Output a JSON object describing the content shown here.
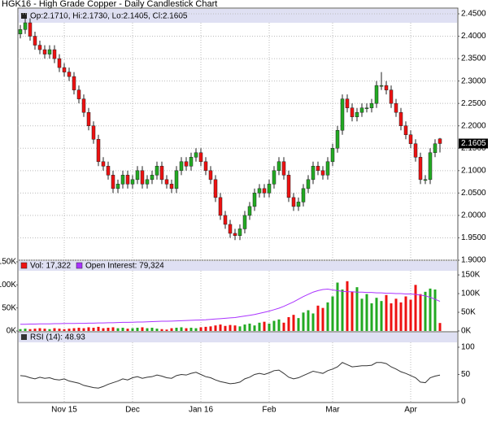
{
  "chart_data": [
    {
      "type": "candlestick",
      "title": "HGK16 - High Grade Copper - Daily Candlestick Chart",
      "legend_text": "Op:2.1710, Hi:2.1730, Lo:2.1405, Cl:2.1605",
      "up_color": "#22aa22",
      "down_color": "#ee1111",
      "grid": true,
      "categories": [
        null,
        null,
        null,
        null,
        null,
        null,
        null,
        null,
        null,
        "Nov 15",
        null,
        null,
        null,
        null,
        null,
        null,
        null,
        null,
        null,
        null,
        null,
        null,
        null,
        "Dec",
        null,
        null,
        null,
        null,
        null,
        null,
        null,
        null,
        null,
        null,
        null,
        null,
        null,
        "Jan 16",
        null,
        null,
        null,
        null,
        null,
        null,
        null,
        null,
        null,
        null,
        null,
        null,
        null,
        "Feb",
        null,
        null,
        null,
        null,
        null,
        null,
        null,
        null,
        null,
        null,
        null,
        null,
        "Mar",
        null,
        null,
        null,
        null,
        null,
        null,
        null,
        null,
        null,
        null,
        null,
        null,
        null,
        null,
        null,
        "Apr",
        null,
        null,
        null,
        null,
        null,
        null
      ],
      "open": [
        2.405,
        2.415,
        2.43,
        2.4,
        2.38,
        2.37,
        2.36,
        2.37,
        2.35,
        2.33,
        2.32,
        2.31,
        2.28,
        2.26,
        2.23,
        2.2,
        2.17,
        2.12,
        2.11,
        2.09,
        2.06,
        2.07,
        2.09,
        2.07,
        2.08,
        2.1,
        2.07,
        2.08,
        2.09,
        2.11,
        2.08,
        2.07,
        2.06,
        2.1,
        2.12,
        2.11,
        2.13,
        2.14,
        2.12,
        2.1,
        2.08,
        2.04,
        2.0,
        1.98,
        1.96,
        1.955,
        1.97,
        2.0,
        2.02,
        2.05,
        2.06,
        2.05,
        2.07,
        2.1,
        2.12,
        2.09,
        2.04,
        2.02,
        2.03,
        2.06,
        2.08,
        2.11,
        2.1,
        2.09,
        2.12,
        2.15,
        2.19,
        2.26,
        2.24,
        2.22,
        2.23,
        2.24,
        2.24,
        2.25,
        2.29,
        2.29,
        2.28,
        2.25,
        2.23,
        2.2,
        2.18,
        2.16,
        2.13,
        2.08,
        2.08,
        2.14,
        2.171
      ],
      "high": [
        2.425,
        2.44,
        2.44,
        2.41,
        2.39,
        2.38,
        2.38,
        2.38,
        2.36,
        2.34,
        2.33,
        2.32,
        2.29,
        2.27,
        2.24,
        2.21,
        2.18,
        2.13,
        2.12,
        2.1,
        2.08,
        2.1,
        2.1,
        2.09,
        2.11,
        2.11,
        2.09,
        2.1,
        2.12,
        2.12,
        2.09,
        2.08,
        2.11,
        2.13,
        2.13,
        2.14,
        2.15,
        2.15,
        2.13,
        2.11,
        2.09,
        2.05,
        2.01,
        1.99,
        1.97,
        1.98,
        2.01,
        2.03,
        2.06,
        2.07,
        2.07,
        2.08,
        2.11,
        2.13,
        2.13,
        2.1,
        2.05,
        2.04,
        2.07,
        2.09,
        2.12,
        2.12,
        2.11,
        2.13,
        2.16,
        2.2,
        2.27,
        2.27,
        2.25,
        2.24,
        2.25,
        2.25,
        2.26,
        2.3,
        2.32,
        2.3,
        2.29,
        2.26,
        2.24,
        2.21,
        2.19,
        2.17,
        2.14,
        2.09,
        2.15,
        2.17,
        2.173
      ],
      "low": [
        2.395,
        2.405,
        2.39,
        2.37,
        2.36,
        2.35,
        2.35,
        2.34,
        2.32,
        2.31,
        2.3,
        2.27,
        2.25,
        2.22,
        2.19,
        2.16,
        2.11,
        2.1,
        2.08,
        2.05,
        2.05,
        2.06,
        2.06,
        2.06,
        2.07,
        2.06,
        2.06,
        2.07,
        2.08,
        2.07,
        2.06,
        2.05,
        2.05,
        2.09,
        2.1,
        2.1,
        2.12,
        2.11,
        2.09,
        2.07,
        2.03,
        1.99,
        1.97,
        1.95,
        1.945,
        1.945,
        1.96,
        1.99,
        2.01,
        2.04,
        2.04,
        2.04,
        2.06,
        2.09,
        2.08,
        2.03,
        2.01,
        2.01,
        2.02,
        2.05,
        2.07,
        2.09,
        2.08,
        2.08,
        2.11,
        2.14,
        2.18,
        2.23,
        2.21,
        2.21,
        2.22,
        2.23,
        2.23,
        2.24,
        2.28,
        2.27,
        2.24,
        2.22,
        2.19,
        2.17,
        2.15,
        2.12,
        2.07,
        2.07,
        2.07,
        2.13,
        2.1405
      ],
      "close": [
        2.415,
        2.43,
        2.4,
        2.38,
        2.37,
        2.36,
        2.37,
        2.35,
        2.33,
        2.32,
        2.31,
        2.28,
        2.26,
        2.23,
        2.2,
        2.17,
        2.12,
        2.11,
        2.09,
        2.06,
        2.07,
        2.09,
        2.07,
        2.08,
        2.1,
        2.07,
        2.08,
        2.09,
        2.11,
        2.08,
        2.07,
        2.06,
        2.1,
        2.12,
        2.11,
        2.13,
        2.14,
        2.12,
        2.1,
        2.08,
        2.04,
        2.0,
        1.98,
        1.96,
        1.955,
        1.97,
        2.0,
        2.02,
        2.05,
        2.06,
        2.05,
        2.07,
        2.1,
        2.12,
        2.09,
        2.04,
        2.02,
        2.03,
        2.06,
        2.08,
        2.11,
        2.1,
        2.09,
        2.12,
        2.15,
        2.19,
        2.26,
        2.24,
        2.22,
        2.23,
        2.24,
        2.24,
        2.25,
        2.29,
        2.29,
        2.28,
        2.25,
        2.23,
        2.2,
        2.18,
        2.16,
        2.13,
        2.08,
        2.08,
        2.14,
        2.16,
        2.1605
      ],
      "ylim": [
        1.9,
        2.45
      ],
      "yticks": [
        {
          "value": 1.9,
          "label": "1.9000"
        },
        {
          "value": 1.95,
          "label": "1.9500"
        },
        {
          "value": 2.0,
          "label": "2.0000"
        },
        {
          "value": 2.05,
          "label": "2.0500"
        },
        {
          "value": 2.1,
          "label": "2.1000"
        },
        {
          "value": 2.15,
          "label": "2.1500"
        },
        {
          "value": 2.2,
          "label": "2.2000"
        },
        {
          "value": 2.25,
          "label": "2.2500"
        },
        {
          "value": 2.3,
          "label": "2.3000"
        },
        {
          "value": 2.35,
          "label": "2.3500"
        },
        {
          "value": 2.4,
          "label": "2.4000"
        },
        {
          "value": 2.45,
          "label": "2.4500"
        }
      ]
    },
    {
      "type": "bar",
      "up_color": "#22aa22",
      "series": [
        {
          "name": "Vol: 17,322",
          "color": "#ee1111",
          "values": [
            4000,
            5000,
            4000,
            5000,
            6000,
            5000,
            4000,
            6000,
            5000,
            4000,
            5000,
            6000,
            7000,
            6000,
            8000,
            7000,
            9000,
            6000,
            7000,
            8000,
            6000,
            7000,
            5000,
            6000,
            7000,
            8000,
            6000,
            7000,
            5000,
            4000,
            3000,
            6000,
            7000,
            8000,
            6000,
            7000,
            6000,
            8000,
            9000,
            10000,
            12000,
            14000,
            11000,
            13000,
            12000,
            10000,
            14000,
            16000,
            12000,
            18000,
            20000,
            16000,
            22000,
            25000,
            18000,
            30000,
            35000,
            28000,
            40000,
            45000,
            38000,
            55000,
            50000,
            62000,
            75000,
            105000,
            90000,
            108000,
            85000,
            95000,
            70000,
            80000,
            60000,
            72000,
            65000,
            78000,
            60000,
            70000,
            62000,
            75000,
            68000,
            100000,
            80000,
            85000,
            92000,
            90000,
            17322
          ]
        },
        {
          "name": "Open Interest: 79,324",
          "color": "#aa33ff",
          "axis": "y2",
          "values": [
            18000,
            18000,
            18500,
            18500,
            19000,
            19000,
            19000,
            19500,
            19500,
            20000,
            20000,
            20000,
            20500,
            20500,
            21000,
            21000,
            21500,
            21500,
            22000,
            22000,
            22500,
            23000,
            23000,
            23500,
            24000,
            24000,
            24500,
            25000,
            25500,
            26000,
            26000,
            26500,
            27000,
            27500,
            28000,
            28500,
            29000,
            29500,
            30000,
            31000,
            32000,
            33000,
            34000,
            35000,
            36000,
            38000,
            40000,
            42000,
            44000,
            47000,
            50000,
            53000,
            57000,
            61000,
            66000,
            72000,
            78000,
            85000,
            92000,
            98000,
            104000,
            108000,
            111000,
            112000,
            110000,
            108000,
            106000,
            105000,
            105000,
            104000,
            104000,
            103000,
            103000,
            102000,
            102000,
            101000,
            101000,
            100000,
            100000,
            99000,
            99000,
            98000,
            96000,
            94000,
            90000,
            85000,
            79324
          ]
        }
      ],
      "ylim": [
        0,
        150000
      ],
      "yticks": [
        {
          "value": 0,
          "label": "0K"
        },
        {
          "value": 50000,
          "label": "50K"
        },
        {
          "value": 100000,
          "label": "100K"
        },
        {
          "value": 150000,
          "label": "150K"
        }
      ],
      "y2lim": [
        0,
        185000
      ],
      "y2ticks": [
        {
          "value": 0,
          "label": "0K"
        },
        {
          "value": 50000,
          "label": "50K"
        },
        {
          "value": 100000,
          "label": "100K"
        },
        {
          "value": 150000,
          "label": "150K"
        }
      ]
    },
    {
      "type": "line",
      "series": [
        {
          "name": "RSI (14): 48.93",
          "color": "#333333",
          "values": [
            48,
            47,
            44,
            42,
            45,
            43,
            44,
            41,
            40,
            42,
            38,
            36,
            34,
            30,
            28,
            26,
            25,
            28,
            32,
            35,
            38,
            42,
            40,
            44,
            46,
            43,
            45,
            46,
            49,
            47,
            44,
            43,
            48,
            50,
            49,
            52,
            54,
            50,
            46,
            44,
            40,
            37,
            35,
            33,
            34,
            36,
            42,
            45,
            50,
            52,
            50,
            53,
            57,
            58,
            52,
            45,
            42,
            44,
            48,
            52,
            56,
            54,
            52,
            57,
            60,
            64,
            72,
            68,
            64,
            65,
            66,
            66,
            67,
            72,
            72,
            70,
            64,
            60,
            55,
            52,
            48,
            44,
            36,
            35,
            44,
            47,
            48.93
          ]
        }
      ],
      "ylim": [
        0,
        100
      ],
      "yticks": [
        0,
        50,
        100
      ]
    }
  ]
}
